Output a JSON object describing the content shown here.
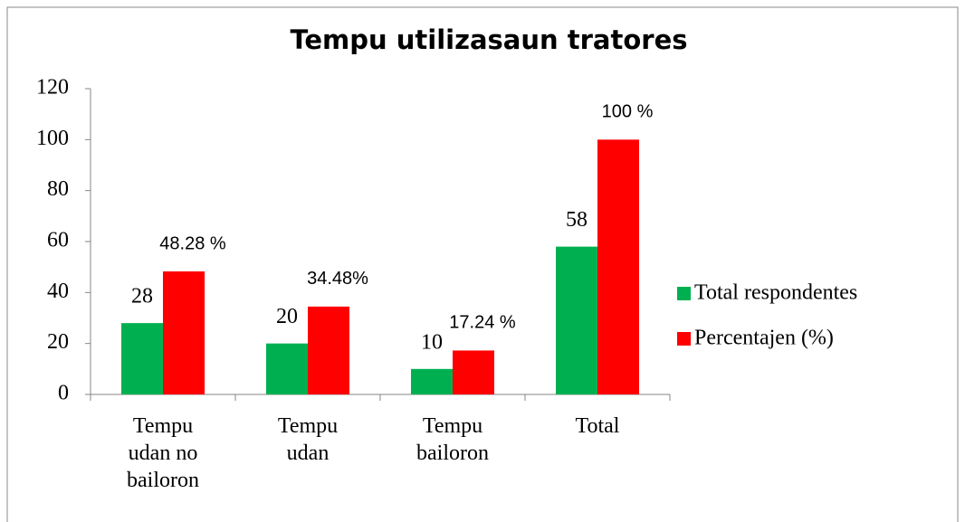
{
  "chart_data": {
    "type": "bar",
    "title": "Tempu utilizasaun tratores",
    "categories": [
      "Tempu udan no bailoron",
      "Tempu udan",
      "Tempu bailoron",
      "Total"
    ],
    "series": [
      {
        "name": "Total respondentes",
        "color": "#00b050",
        "values": [
          28,
          20,
          10,
          58
        ]
      },
      {
        "name": "Percentajen (%)",
        "color": "#ff0000",
        "values": [
          48.28,
          34.48,
          17.24,
          100
        ],
        "value_labels": [
          "48.28 %",
          "34.48%",
          "17.24 %",
          "100 %"
        ]
      }
    ],
    "ylim": [
      0,
      120
    ],
    "yticks": [
      0,
      20,
      40,
      60,
      80,
      100,
      120
    ],
    "legend": "right"
  }
}
